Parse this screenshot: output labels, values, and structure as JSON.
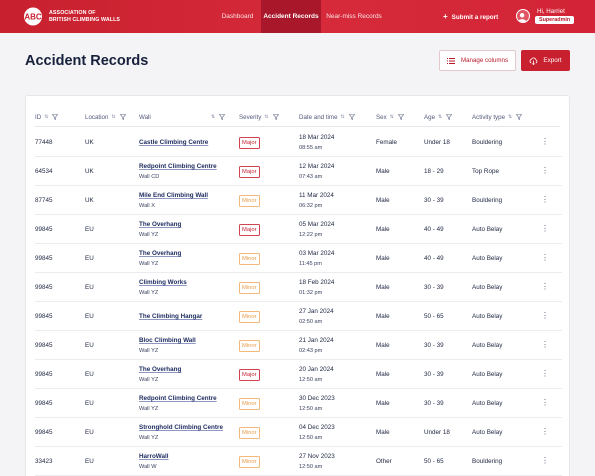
{
  "header": {
    "logo_letters": "ABC",
    "logo_line1": "ASSOCIATION OF",
    "logo_line2": "BRITISH CLIMBING WALLS",
    "nav": [
      {
        "label": "Dashboard",
        "active": false
      },
      {
        "label": "Accident Records",
        "active": true
      },
      {
        "label": "Near-miss Records",
        "active": false
      }
    ],
    "submit_label": "Submit a report",
    "user_greeting": "Hi, Harriet",
    "user_role": "Superadmin"
  },
  "page": {
    "title": "Accident Records",
    "manage_columns_label": "Manage columns",
    "export_label": "Export"
  },
  "colors": {
    "brand": "#c8202e",
    "brand_dark": "#a9182a",
    "major": "#c01f2f",
    "minor": "#ea9b4a"
  },
  "table": {
    "columns": [
      "ID",
      "Location",
      "Wall",
      "Severity",
      "Date and time",
      "Sex",
      "Age",
      "Activity type"
    ],
    "rows": [
      {
        "id": "77448",
        "location": "UK",
        "wall": "Castle Climbing Centre",
        "wall_sub": "",
        "severity": "Major",
        "date": "18 Mar 2024",
        "time": "08:55 am",
        "sex": "Female",
        "age": "Under 18",
        "activity": "Bouldering"
      },
      {
        "id": "64534",
        "location": "UK",
        "wall": "Redpoint Climbing Centre",
        "wall_sub": "Wall CD",
        "severity": "Major",
        "date": "12 Mar 2024",
        "time": "07:43 am",
        "sex": "Male",
        "age": "18 - 29",
        "activity": "Top Rope"
      },
      {
        "id": "87745",
        "location": "UK",
        "wall": "Mile End Climbing Wall",
        "wall_sub": "Wall X",
        "severity": "Minor",
        "date": "11 Mar 2024",
        "time": "06:32 pm",
        "sex": "Male",
        "age": "30 - 39",
        "activity": "Bouldering"
      },
      {
        "id": "99845",
        "location": "EU",
        "wall": "The Overhang",
        "wall_sub": "Wall YZ",
        "severity": "Major",
        "date": "05 Mar 2024",
        "time": "12:22 pm",
        "sex": "Male",
        "age": "40 - 49",
        "activity": "Auto Belay"
      },
      {
        "id": "99845",
        "location": "EU",
        "wall": "The Overhang",
        "wall_sub": "Wall YZ",
        "severity": "Minor",
        "date": "03 Mar 2024",
        "time": "11:45 pm",
        "sex": "Male",
        "age": "40 - 49",
        "activity": "Auto Belay"
      },
      {
        "id": "99845",
        "location": "EU",
        "wall": "Climbing Works",
        "wall_sub": "Wall YZ",
        "severity": "Minor",
        "date": "18 Feb 2024",
        "time": "01:32 pm",
        "sex": "Male",
        "age": "30 - 39",
        "activity": "Auto Belay"
      },
      {
        "id": "99845",
        "location": "EU",
        "wall": "The Climbing Hangar",
        "wall_sub": "",
        "severity": "Minor",
        "date": "27 Jan 2024",
        "time": "02:50 am",
        "sex": "Male",
        "age": "50 - 65",
        "activity": "Auto Belay"
      },
      {
        "id": "99845",
        "location": "EU",
        "wall": "Bloc Climbing Wall",
        "wall_sub": "Wall YZ",
        "severity": "Minor",
        "date": "21 Jan 2024",
        "time": "02:43 pm",
        "sex": "Male",
        "age": "30 - 39",
        "activity": "Auto Belay"
      },
      {
        "id": "99845",
        "location": "EU",
        "wall": "The Overhang",
        "wall_sub": "Wall YZ",
        "severity": "Major",
        "date": "20 Jan 2024",
        "time": "12:50 am",
        "sex": "Male",
        "age": "30 - 39",
        "activity": "Auto Belay"
      },
      {
        "id": "99845",
        "location": "EU",
        "wall": "Redpoint Climbing Centre",
        "wall_sub": "Wall YZ",
        "severity": "Minor",
        "date": "30 Dec 2023",
        "time": "12:50 am",
        "sex": "Male",
        "age": "30 - 39",
        "activity": "Auto Belay"
      },
      {
        "id": "99845",
        "location": "EU",
        "wall": "Stronghold Climbing Centre",
        "wall_sub": "Wall YZ",
        "severity": "Minor",
        "date": "04 Dec 2023",
        "time": "12:50 am",
        "sex": "Male",
        "age": "Under 18",
        "activity": "Auto Belay"
      },
      {
        "id": "33423",
        "location": "EU",
        "wall": "HarroWall",
        "wall_sub": "Wall W",
        "severity": "Minor",
        "date": "27 Nov 2023",
        "time": "12:50 am",
        "sex": "Other",
        "age": "50 - 65",
        "activity": "Bouldering"
      }
    ]
  }
}
